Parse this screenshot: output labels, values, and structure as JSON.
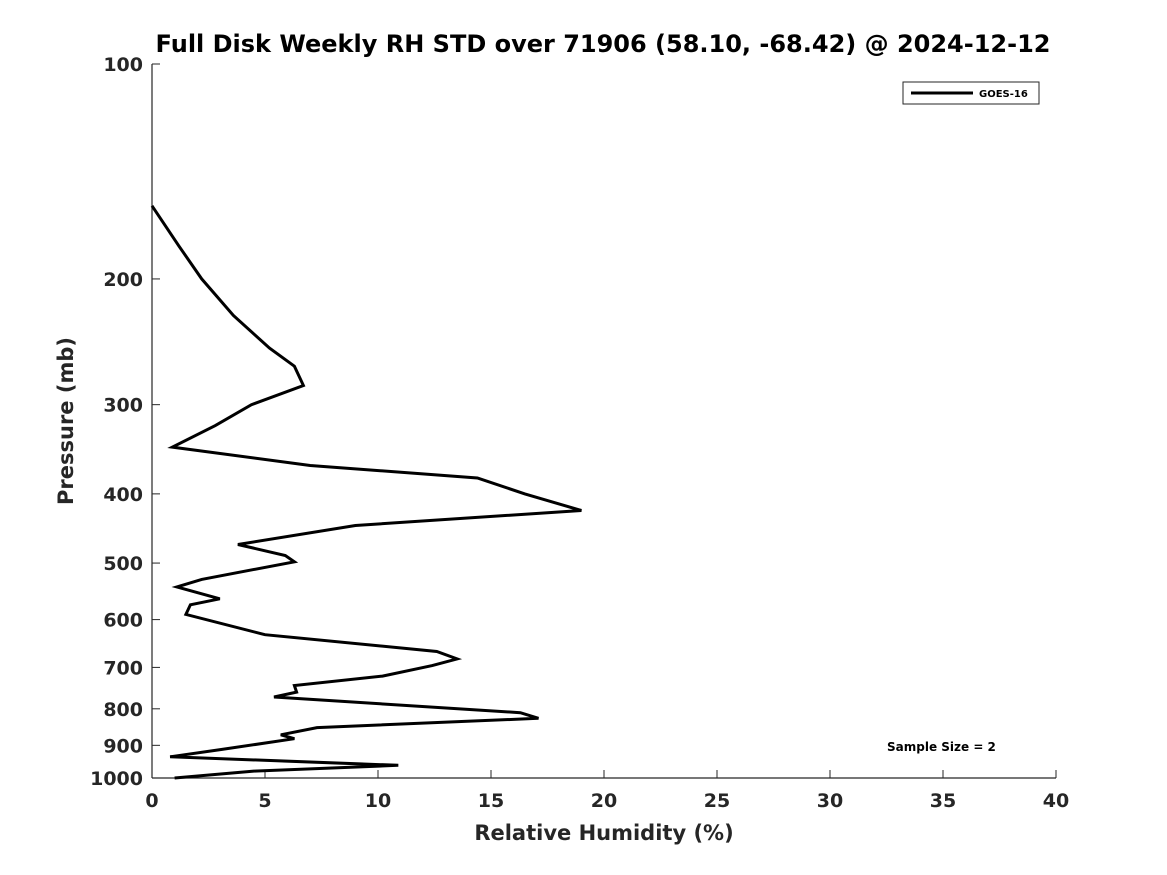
{
  "chart_data": {
    "type": "line",
    "title": "Full Disk Weekly RH STD over 71906 (58.10, -68.42) @ 2024-12-12",
    "xlabel": "Relative Humidity (%)",
    "ylabel": "Pressure (mb)",
    "xlim": [
      0,
      40
    ],
    "ylim": [
      100,
      1000
    ],
    "yscale": "log",
    "reversed_y": true,
    "grid": false,
    "legend_position": "top-right",
    "xticks": [
      "0",
      "5",
      "10",
      "15",
      "20",
      "25",
      "30",
      "35",
      "40"
    ],
    "yticks": [
      "100",
      "200",
      "300",
      "400",
      "500",
      "600",
      "700",
      "800",
      "900",
      "1000"
    ],
    "annotation": "Sample Size = 2",
    "series": [
      {
        "name": "GOES-16",
        "color": "#000000",
        "points": [
          [
            0.0,
            158
          ],
          [
            1.2,
            180
          ],
          [
            2.2,
            200
          ],
          [
            3.6,
            225
          ],
          [
            5.2,
            250
          ],
          [
            6.3,
            265
          ],
          [
            6.7,
            282
          ],
          [
            4.4,
            300
          ],
          [
            2.8,
            321
          ],
          [
            0.9,
            344
          ],
          [
            7.0,
            365
          ],
          [
            14.4,
            380
          ],
          [
            16.5,
            400
          ],
          [
            19.0,
            422
          ],
          [
            9.0,
            443
          ],
          [
            3.8,
            471
          ],
          [
            5.9,
            488
          ],
          [
            6.3,
            498
          ],
          [
            2.2,
            527
          ],
          [
            1.1,
            540
          ],
          [
            3.0,
            561
          ],
          [
            1.7,
            572
          ],
          [
            1.5,
            590
          ],
          [
            5.0,
            630
          ],
          [
            12.6,
            665
          ],
          [
            13.5,
            681
          ],
          [
            12.4,
            696
          ],
          [
            10.2,
            720
          ],
          [
            6.3,
            742
          ],
          [
            6.4,
            758
          ],
          [
            5.4,
            770
          ],
          [
            16.3,
            810
          ],
          [
            17.1,
            825
          ],
          [
            7.3,
            850
          ],
          [
            5.7,
            870
          ],
          [
            6.3,
            881
          ],
          [
            3.1,
            912
          ],
          [
            0.8,
            934
          ],
          [
            10.9,
            960
          ],
          [
            4.5,
            978
          ],
          [
            1.0,
            1000
          ]
        ]
      }
    ]
  }
}
